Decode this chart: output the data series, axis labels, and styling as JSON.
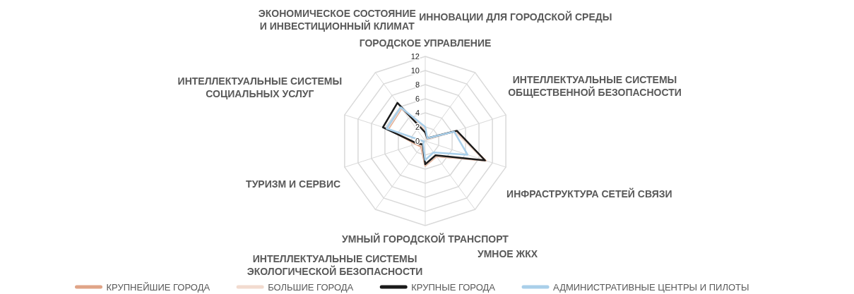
{
  "chart_data": {
    "type": "radar",
    "categories": [
      "ГОРОДСКОЕ УПРАВЛЕНИЕ",
      "ИННОВАЦИИ ДЛЯ ГОРОДСКОЙ СРЕДЫ",
      "ИНТЕЛЛЕКТУАЛЬНЫЕ СИСТЕМЫ\nОБЩЕСТВЕННОЙ БЕЗОПАСНОСТИ",
      "ИНФРАСТРУКТУРА СЕТЕЙ СВЯЗИ",
      "УМНОЕ ЖКХ",
      "УМНЫЙ ГОРОДСКОЙ ТРАНСПОРТ",
      "ИНТЕЛЛЕКТУАЛЬНЫЕ СИСТЕМЫ\nЭКОЛОГИЧЕСКОЙ БЕЗОПАСНОСТИ",
      "ТУРИЗМ И СЕРВИС",
      "ИНТЕЛЛЕКТУАЛЬНЫЕ СИСТЕМЫ\nСОЦИАЛЬНЫХ УСЛУГ",
      "ЭКОНОМИЧЕСКОЕ СОСТОЯНИЕ\nИ ИНВЕСТИЦИОННЫЙ КЛИМАТ"
    ],
    "series": [
      {
        "name": "КРУПНЕЙШИЕ ГОРОДА",
        "color": "#e0a487",
        "values": [
          1.5,
          0.4,
          4.5,
          9.0,
          2.7,
          3.5,
          1.0,
          1.4,
          5.5,
          5.7
        ]
      },
      {
        "name": "БОЛЬШИЕ ГОРОДА",
        "color": "#f2dbcf",
        "values": [
          1.6,
          0.4,
          4.4,
          8.8,
          2.6,
          3.4,
          0.8,
          1.2,
          5.6,
          5.8
        ]
      },
      {
        "name": "КРУПНЫЕ ГОРОДА",
        "color": "#1a1a1a",
        "values": [
          1.2,
          0.5,
          4.7,
          8.9,
          2.5,
          3.3,
          0.6,
          1.2,
          6.3,
          6.7
        ]
      },
      {
        "name": "АДМИНИСТРАТИВНЫЕ ЦЕНТРЫ И ПИЛОТЫ",
        "color": "#a9cfea",
        "values": [
          2.0,
          0.5,
          4.3,
          6.3,
          2.0,
          2.7,
          0.5,
          0.2,
          5.75,
          5.9
        ]
      }
    ],
    "ylim": [
      0,
      12
    ],
    "yticks": [
      0,
      2,
      4,
      6,
      8,
      10,
      12
    ],
    "grid": true,
    "legend": "bottom",
    "line_style": "solid",
    "marker": "none"
  }
}
